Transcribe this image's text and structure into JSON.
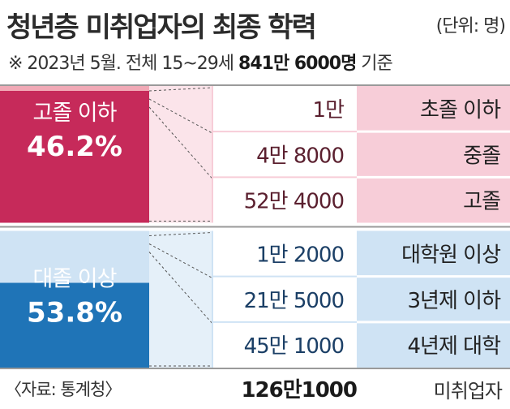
{
  "header": {
    "title": "청년층 미취업자의 최종 학력",
    "unit": "(단위: 명)"
  },
  "subtitle": {
    "prefix": "※ 2023년 5월. 전체 15~29세 ",
    "total": "841만 6000명",
    "suffix": " 기준"
  },
  "footer": {
    "source": "〈자료: 통계청〉",
    "total_value": "126만1000",
    "total_label": "미취업자"
  },
  "colors": {
    "high_school_group": "#c62a5a",
    "high_school_light": "#f7cdd8",
    "college_group": "#1f74b7",
    "college_light": "#cfe3f4"
  },
  "chart_data": {
    "type": "bar",
    "groups": [
      {
        "label": "고졸 이하",
        "share_label": "46.2%",
        "share": 46.2,
        "color": "#c62a5a",
        "light": "#f7cdd8",
        "items": [
          {
            "category": "초졸 이하",
            "value_label": "1만",
            "value": 10000
          },
          {
            "category": "중졸",
            "value_label": "4만 8000",
            "value": 48000
          },
          {
            "category": "고졸",
            "value_label": "52만 4000",
            "value": 524000
          }
        ]
      },
      {
        "label": "대졸 이상",
        "share_label": "53.8%",
        "share": 53.8,
        "color": "#1f74b7",
        "light": "#cfe3f4",
        "items": [
          {
            "category": "대학원 이상",
            "value_label": "1만 2000",
            "value": 12000
          },
          {
            "category": "3년제 이하",
            "value_label": "21만 5000",
            "value": 215000
          },
          {
            "category": "4년제 대학",
            "value_label": "45만 1000",
            "value": 451000
          }
        ]
      }
    ],
    "total_label": "126만1000",
    "total": 1261000
  }
}
